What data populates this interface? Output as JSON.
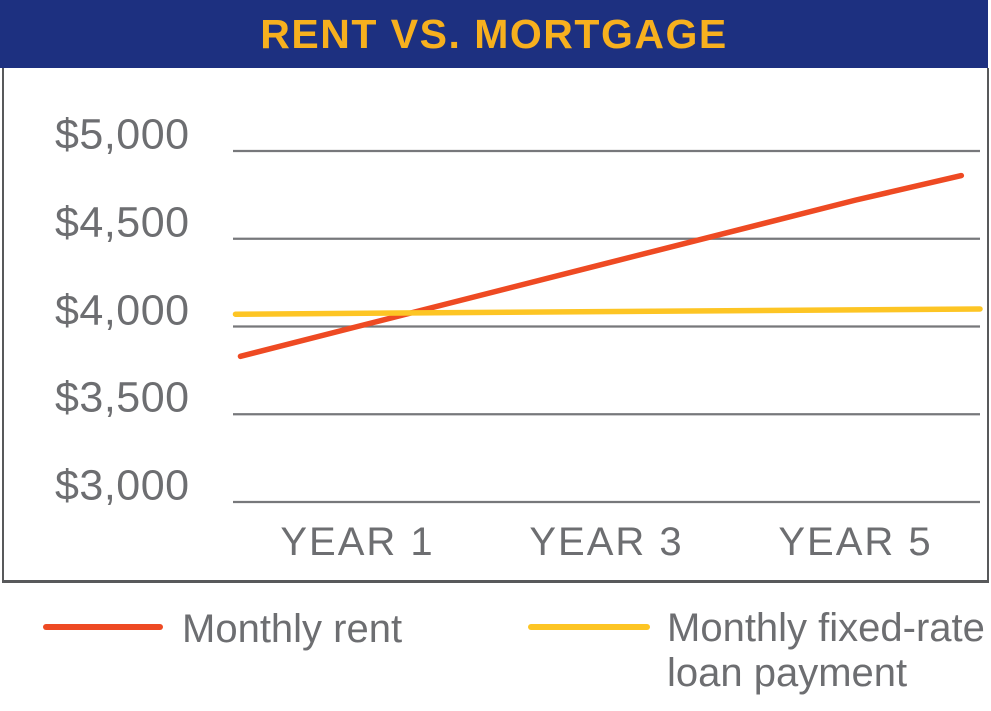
{
  "header": {
    "title": "RENT VS. MORTGAGE"
  },
  "chart_data": {
    "type": "line",
    "title": "RENT VS. MORTGAGE",
    "x_axis": {
      "min": 0,
      "max": 6,
      "ticks": [
        {
          "x": 1,
          "label": "YEAR 1"
        },
        {
          "x": 3,
          "label": "YEAR 3"
        },
        {
          "x": 5,
          "label": "YEAR 5"
        }
      ]
    },
    "y_axis": {
      "min": 3000,
      "max": 5000,
      "tick_step": 500,
      "ticks": [
        {
          "value": 5000,
          "label": "$5,000"
        },
        {
          "value": 4500,
          "label": "$4,500"
        },
        {
          "value": 4000,
          "label": "$4,000"
        },
        {
          "value": 3500,
          "label": "$3,500"
        },
        {
          "value": 3000,
          "label": "$3,000"
        }
      ]
    },
    "grid": {
      "horizontal": true,
      "vertical": false
    },
    "series": [
      {
        "name": "Monthly rent",
        "color": "#ee4a23",
        "points": [
          {
            "x": 0.06,
            "y": 3830
          },
          {
            "x": 1,
            "y": 4000
          },
          {
            "x": 3,
            "y": 4360
          },
          {
            "x": 5,
            "y": 4720
          },
          {
            "x": 5.85,
            "y": 4860
          }
        ]
      },
      {
        "name": "Monthly fixed-rate loan payment",
        "color": "#fdc524",
        "points": [
          {
            "x": 0.02,
            "y": 4070
          },
          {
            "x": 6,
            "y": 4100
          }
        ]
      }
    ],
    "legend_position": "bottom"
  },
  "legend": {
    "items": [
      {
        "label": "Monthly rent",
        "lines": [
          "Monthly rent",
          ""
        ],
        "color": "#ee4a23"
      },
      {
        "label": "Monthly fixed-rate loan payment",
        "lines": [
          "Monthly fixed-rate",
          "loan payment"
        ],
        "color": "#fdc524"
      }
    ]
  },
  "colors": {
    "header_navy": "#1d3080",
    "title_gold": "#f7b01e",
    "rent_red": "#ee4a23",
    "loan_yellow": "#fdc524",
    "text_gray": "#6d6e71",
    "gridline_gray": "#77787b",
    "border_gray": "#58595b"
  }
}
